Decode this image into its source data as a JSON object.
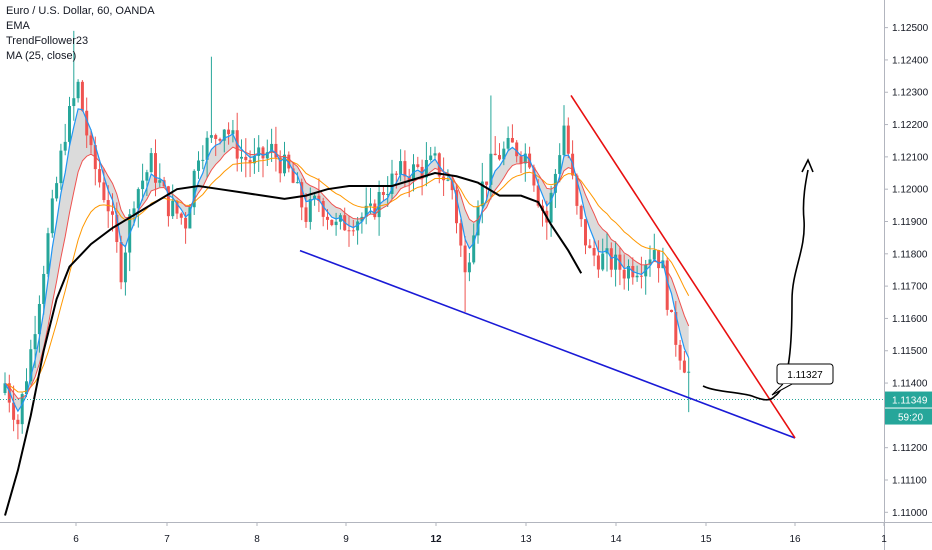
{
  "header": {
    "symbol_line": "Euro / U.S. Dollar, 60, OANDA",
    "indicators": [
      "EMA",
      "TrendFollower23",
      "MA (25, close)"
    ]
  },
  "colors": {
    "up": "#26a69a",
    "down": "#ef5350",
    "ema_fast": "#2196f3",
    "ema_slow": "#ef5350",
    "orange": "#ff9800",
    "ma": "#000000",
    "fill": "#bdbdbd",
    "support_line": "#1a1ad6",
    "resistance_line": "#e81010",
    "price_line": "#26a69a",
    "price_badge": "#26a69a"
  },
  "price_axis": {
    "labels": [
      "1.12500",
      "1.12400",
      "1.12300",
      "1.12200",
      "1.12100",
      "1.12000",
      "1.11900",
      "1.11800",
      "1.11700",
      "1.11600",
      "1.11500",
      "1.11400",
      "1.11300",
      "1.11200",
      "1.11100",
      "1.11000"
    ],
    "current_price": "1.11349",
    "countdown": "59:20"
  },
  "annotation": {
    "label": "1.11327"
  },
  "chart_data": {
    "type": "candlestick",
    "x_labels": [
      "6",
      "7",
      "8",
      "9",
      "12",
      "13",
      "14",
      "15",
      "16",
      "1"
    ],
    "x_label_bold": [
      "12"
    ],
    "y_range": [
      1.1097,
      1.1257
    ],
    "current_price": 1.11349,
    "trendlines": [
      {
        "name": "support",
        "from": {
          "x": "8 (~13:00)",
          "y": 1.1181
        },
        "to": {
          "x": "16 (~00:00)",
          "y": 1.1123
        }
      },
      {
        "name": "resistance",
        "from": {
          "x": "13 (~13:00)",
          "y": 1.1229
        },
        "to": {
          "x": "16 (~00:00)",
          "y": 1.1123
        }
      }
    ],
    "projection_label": 1.11327,
    "series": [
      {
        "name": "MA (25, close)",
        "points": [
          [
            0,
            1.1099
          ],
          [
            3,
            1.1113
          ],
          [
            6,
            1.113
          ],
          [
            9,
            1.115
          ],
          [
            12,
            1.1166
          ],
          [
            15,
            1.1176
          ],
          [
            20,
            1.1183
          ],
          [
            25,
            1.1188
          ],
          [
            30,
            1.1192
          ],
          [
            35,
            1.1196
          ],
          [
            40,
            1.12
          ],
          [
            45,
            1.1201
          ],
          [
            50,
            1.12
          ],
          [
            55,
            1.1199
          ],
          [
            60,
            1.1198
          ],
          [
            65,
            1.1197
          ],
          [
            70,
            1.1198
          ],
          [
            75,
            1.12
          ],
          [
            80,
            1.1201
          ],
          [
            85,
            1.1201
          ],
          [
            90,
            1.1201
          ],
          [
            95,
            1.1203
          ],
          [
            100,
            1.1205
          ],
          [
            105,
            1.1204
          ],
          [
            110,
            1.1202
          ],
          [
            115,
            1.1198
          ],
          [
            120,
            1.1198
          ],
          [
            124,
            1.1196
          ],
          [
            127,
            1.1189
          ],
          [
            131,
            1.1181
          ],
          [
            134,
            1.1174
          ]
        ]
      }
    ]
  }
}
